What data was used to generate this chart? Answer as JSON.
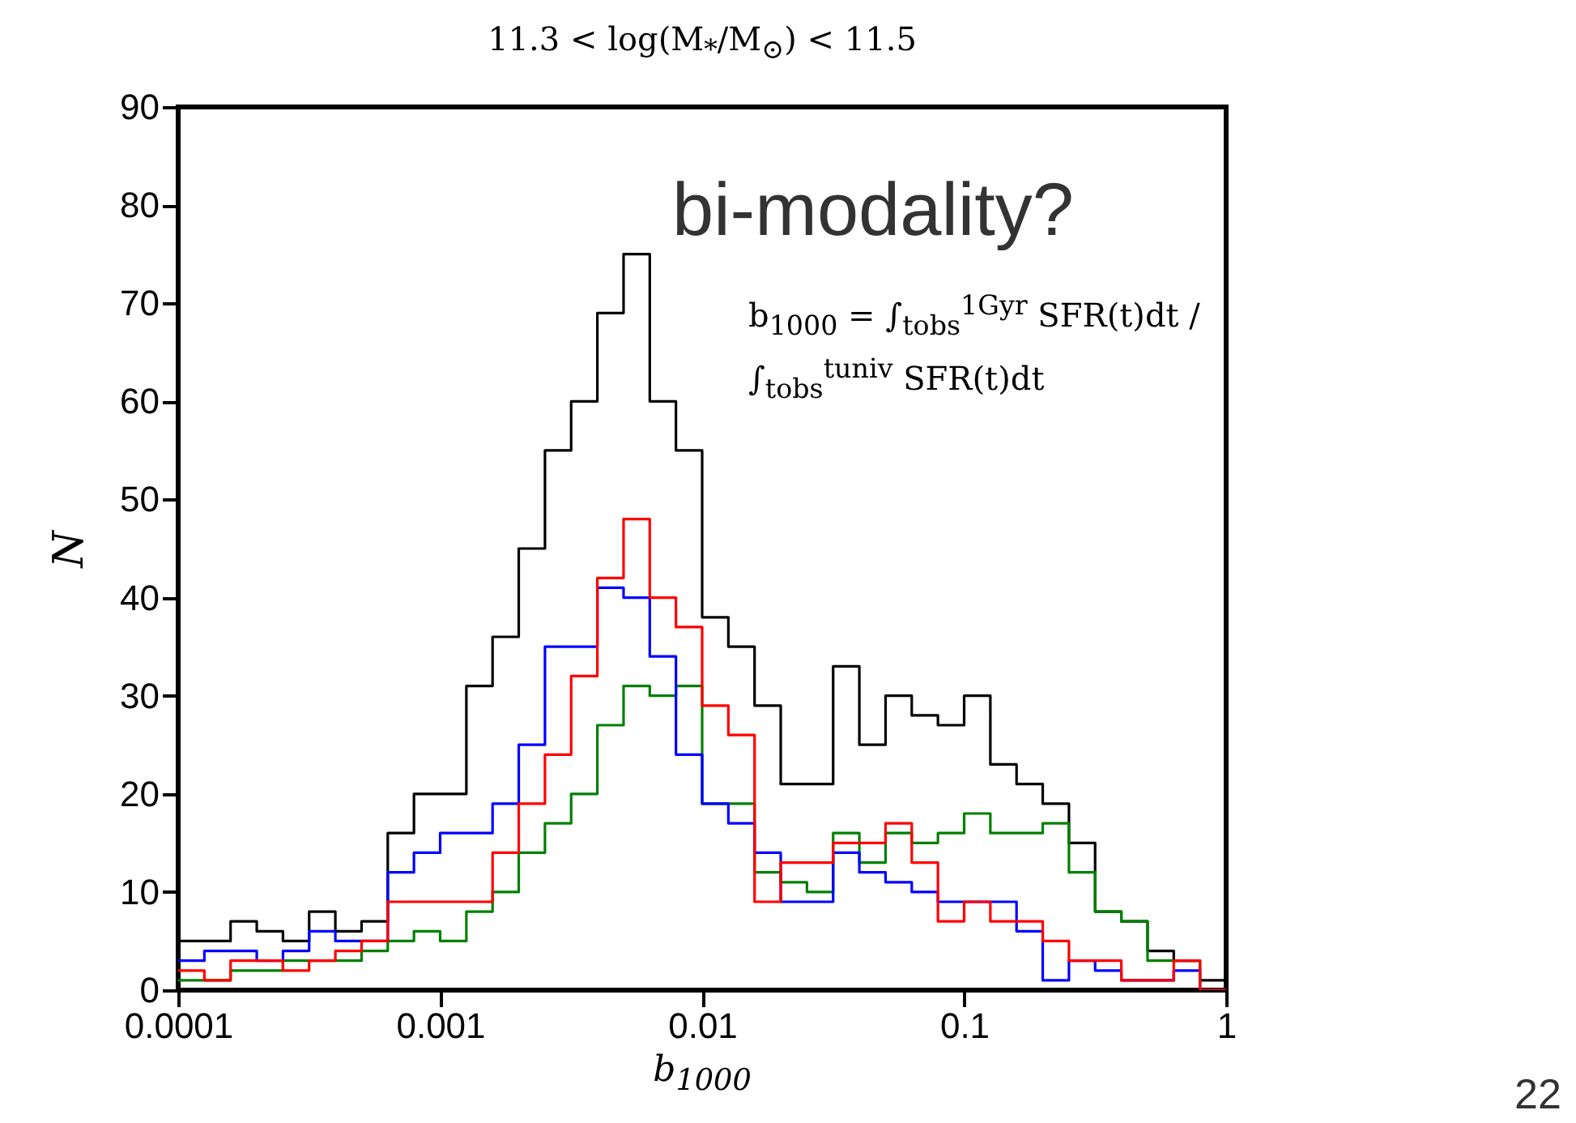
{
  "chart_data": {
    "type": "histogram",
    "title": "11.3 < log(M$_{*}$/M$_{⊙}$) < 11.5",
    "xlabel": "b$_{1000}$",
    "ylabel": "N",
    "annotations": [
      "bi-modality?",
      "b$_{1000}$ = ∫$_{tobs}$$^{1Gyr}$ SFR(t)dt / ∫$_{tobs}$$^{tuniv}$ SFR(t)dt",
      "22"
    ],
    "log": "x",
    "xlim": [
      0.0001,
      1
    ],
    "xticks": [
      0.0001,
      0.001,
      0.01,
      0.1,
      1
    ],
    "ylim": [
      0,
      90
    ],
    "yticks": [
      0,
      10,
      20,
      30,
      40,
      50,
      60,
      70,
      80,
      90
    ],
    "bins": [
      0.0001,
      0.0001259,
      0.0001585,
      0.0001995,
      0.0002512,
      0.0003162,
      0.0003981,
      0.0005012,
      0.000631,
      0.0007943,
      0.001,
      0.001259,
      0.001585,
      0.001995,
      0.002512,
      0.003162,
      0.003981,
      0.005012,
      0.00631,
      0.007943,
      0.01,
      0.01259,
      0.01585,
      0.01995,
      0.02512,
      0.03162,
      0.03981,
      0.05012,
      0.0631,
      0.07943,
      0.1,
      0.1259,
      0.1585,
      0.1995,
      0.2512,
      0.3162,
      0.3981,
      0.5012,
      0.631,
      0.7943,
      1
    ],
    "series": [
      {
        "color": "#000000",
        "values": [
          5,
          5,
          7,
          6,
          5,
          8,
          6,
          7,
          16,
          20,
          20,
          31,
          36,
          45,
          55,
          60,
          69,
          75,
          60,
          55,
          38,
          35,
          29,
          21,
          21,
          33,
          25,
          30,
          28,
          27,
          30,
          23,
          21,
          19,
          15,
          8,
          7,
          4,
          3,
          1
        ]
      },
      {
        "color": "#008000",
        "values": [
          1,
          1,
          2,
          2,
          3,
          3,
          3,
          4,
          5,
          6,
          5,
          8,
          10,
          14,
          17,
          20,
          27,
          31,
          30,
          31,
          19,
          19,
          12,
          11,
          10,
          16,
          13,
          16,
          15,
          16,
          18,
          16,
          16,
          17,
          12,
          8,
          7,
          3,
          3,
          0
        ]
      },
      {
        "color": "#0000ff",
        "values": [
          3,
          4,
          4,
          3,
          4,
          6,
          5,
          5,
          12,
          14,
          16,
          16,
          19,
          25,
          35,
          35,
          41,
          40,
          34,
          24,
          19,
          17,
          14,
          9,
          9,
          14,
          12,
          11,
          10,
          9,
          9,
          9,
          6,
          1,
          3,
          2,
          1,
          1,
          2,
          0
        ]
      },
      {
        "color": "#ff0000",
        "values": [
          2,
          1,
          3,
          3,
          2,
          3,
          4,
          5,
          9,
          9,
          9,
          9,
          14,
          19,
          24,
          32,
          42,
          48,
          40,
          37,
          29,
          26,
          9,
          13,
          13,
          15,
          15,
          17,
          13,
          7,
          9,
          7,
          7,
          5,
          3,
          3,
          1,
          1,
          3,
          0
        ]
      }
    ],
    "grid": false,
    "legend": false
  }
}
